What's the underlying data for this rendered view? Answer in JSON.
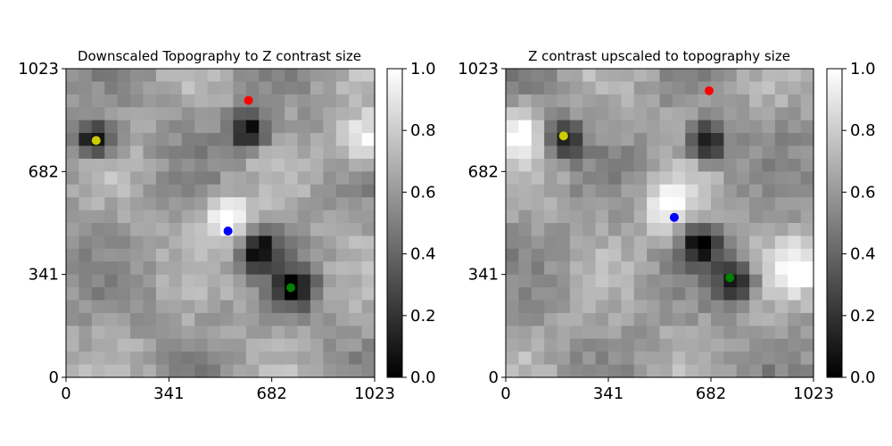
{
  "chart_data": [
    {
      "type": "heatmap",
      "title": "Downscaled Topography to Z contrast size",
      "xlabel": "",
      "ylabel": "",
      "xlim": [
        0,
        1023
      ],
      "ylim": [
        0,
        1023
      ],
      "x_ticks": [
        "0",
        "341",
        "682",
        "1023"
      ],
      "y_ticks": [
        "0",
        "341",
        "682",
        "1023"
      ],
      "colormap": "gray",
      "colorbar": {
        "range": [
          0.0,
          1.0
        ],
        "ticks": [
          "0.0",
          "0.2",
          "0.4",
          "0.6",
          "0.8",
          "1.0"
        ]
      },
      "bright_features": [
        {
          "x": 535,
          "y": 520
        },
        {
          "x": 990,
          "y": 790
        }
      ],
      "dark_features": [
        {
          "x": 95,
          "y": 790
        },
        {
          "x": 605,
          "y": 820
        },
        {
          "x": 760,
          "y": 295
        },
        {
          "x": 640,
          "y": 420
        }
      ],
      "markers": [
        {
          "color": "#ff0000",
          "x": 605,
          "y": 918
        },
        {
          "color": "#cccc00",
          "x": 100,
          "y": 785
        },
        {
          "color": "#0000ff",
          "x": 537,
          "y": 485
        },
        {
          "color": "#008000",
          "x": 745,
          "y": 297
        }
      ]
    },
    {
      "type": "heatmap",
      "title": "Z contrast upscaled to topography size",
      "xlabel": "",
      "ylabel": "",
      "xlim": [
        0,
        1023
      ],
      "ylim": [
        0,
        1023
      ],
      "x_ticks": [
        "0",
        "341",
        "682",
        "1023"
      ],
      "y_ticks": [
        "0",
        "341",
        "682",
        "1023"
      ],
      "colormap": "gray",
      "colorbar": {
        "range": [
          0.0,
          1.0
        ],
        "ticks": [
          "0.0",
          "0.2",
          "0.4",
          "0.6",
          "0.8",
          "1.0"
        ]
      },
      "bright_features": [
        {
          "x": 60,
          "y": 800
        },
        {
          "x": 540,
          "y": 560
        },
        {
          "x": 980,
          "y": 360
        }
      ],
      "dark_features": [
        {
          "x": 185,
          "y": 790
        },
        {
          "x": 670,
          "y": 780
        },
        {
          "x": 760,
          "y": 320
        },
        {
          "x": 650,
          "y": 440
        }
      ],
      "markers": [
        {
          "color": "#ff0000",
          "x": 676,
          "y": 950
        },
        {
          "color": "#cccc00",
          "x": 192,
          "y": 800
        },
        {
          "color": "#0000ff",
          "x": 560,
          "y": 530
        },
        {
          "color": "#008000",
          "x": 745,
          "y": 330
        }
      ]
    }
  ]
}
